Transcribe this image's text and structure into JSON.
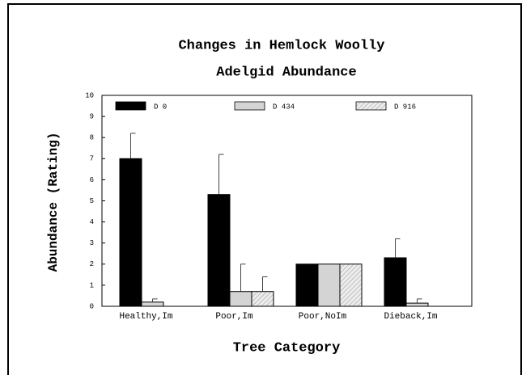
{
  "chart_data": {
    "type": "bar",
    "title": [
      "Changes in Hemlock Woolly",
      "Adelgid Abundance"
    ],
    "xlabel": "Tree Category",
    "ylabel": "Abundance (Rating)",
    "categories": [
      "Healthy,Im",
      "Poor,Im",
      "Poor,NoIm",
      "Dieback,Im"
    ],
    "series": [
      {
        "name": "D 0",
        "color": "#000000",
        "values": [
          7.0,
          5.3,
          2.0,
          2.3
        ],
        "errors": [
          1.2,
          1.9,
          0,
          0.9
        ]
      },
      {
        "name": "D 434",
        "color": "#d4d4d4",
        "values": [
          0.2,
          0.7,
          2.0,
          0.15
        ],
        "errors": [
          0.15,
          1.3,
          0,
          0.2
        ]
      },
      {
        "name": "D 916",
        "color": "#e6e6e6",
        "hatch": true,
        "values": [
          0,
          0.7,
          2.0,
          0
        ],
        "errors": [
          0,
          0.7,
          0,
          0
        ]
      }
    ],
    "ylim": [
      0,
      10
    ],
    "yticks": [
      0,
      1,
      2,
      3,
      4,
      5,
      6,
      7,
      8,
      9,
      10
    ]
  }
}
